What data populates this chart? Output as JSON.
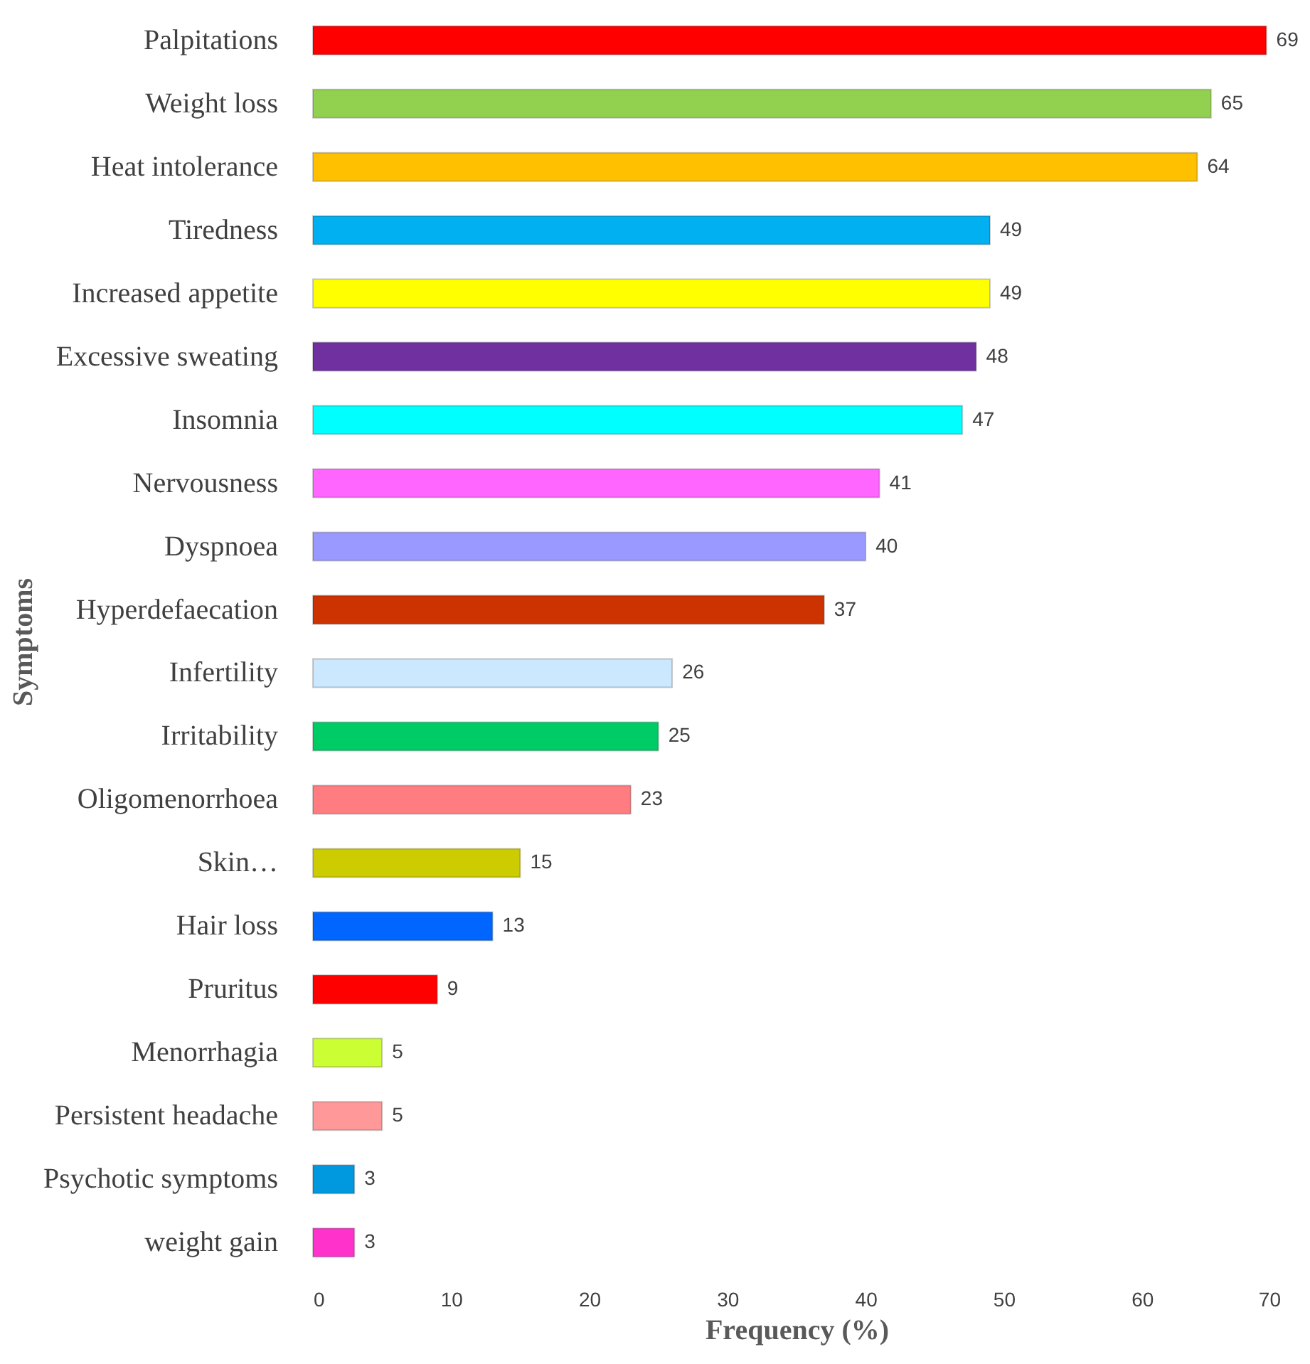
{
  "chart_data": {
    "type": "bar",
    "orientation": "horizontal",
    "xlabel": "Frequency (%)",
    "ylabel": "Symptoms",
    "categories": [
      "Palpitations",
      "Weight loss",
      "Heat intolerance",
      "Tiredness",
      "Increased appetite",
      "Excessive sweating",
      "Insomnia",
      "Nervousness",
      "Dyspnoea",
      "Hyperdefaecation",
      "Infertility",
      "Irritability",
      "Oligomenorrhoea",
      "Skin…",
      "Hair loss",
      "Pruritus",
      "Menorrhagia",
      "Persistent headache",
      "Psychotic symptoms",
      "weight gain"
    ],
    "values": [
      69,
      65,
      64,
      49,
      49,
      48,
      47,
      41,
      40,
      37,
      26,
      25,
      23,
      15,
      13,
      9,
      5,
      5,
      3,
      3
    ],
    "colors": [
      "#ff0000",
      "#92d050",
      "#ffc000",
      "#00b0f0",
      "#ffff00",
      "#7030a0",
      "#00ffff",
      "#ff66ff",
      "#9999ff",
      "#cc3300",
      "#cce8ff",
      "#00cc66",
      "#ff7c80",
      "#cccc00",
      "#0066ff",
      "#ff0000",
      "#ccff33",
      "#ff9999",
      "#0099e0",
      "#ff33cc"
    ],
    "xlim": [
      0,
      70
    ],
    "xticks": [
      0,
      10,
      20,
      30,
      40,
      50,
      60,
      70
    ],
    "grid": false,
    "data_labels": true,
    "legend": false
  }
}
